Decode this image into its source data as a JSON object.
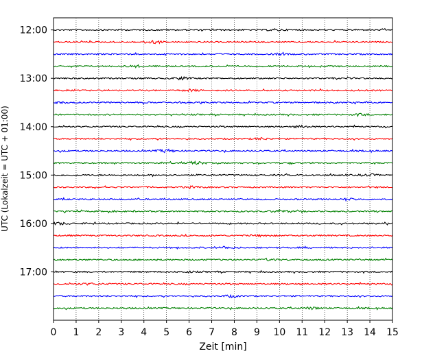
{
  "chart_data": {
    "type": "line",
    "xlabel": "Zeit  [min]",
    "ylabel": "UTC (Lokalzeit = UTC + 01:00)",
    "xlim": [
      0,
      15
    ],
    "x_ticks": [
      "0",
      "1",
      "2",
      "3",
      "4",
      "5",
      "6",
      "7",
      "8",
      "9",
      "10",
      "11",
      "12",
      "13",
      "14",
      "15"
    ],
    "y_ticks": [
      "12:00",
      "13:00",
      "14:00",
      "15:00",
      "16:00",
      "17:00"
    ],
    "ylim_minutes_after_12": [
      -0.25,
      6.0
    ],
    "trace_start_offsets_minutes": [
      0,
      15,
      30,
      45,
      60,
      75,
      90,
      105,
      120,
      135,
      150,
      165,
      180,
      195,
      210,
      225,
      240,
      255,
      270,
      285,
      300,
      315,
      330,
      345
    ],
    "trace_colors": [
      "#000000",
      "#ff0000",
      "#0000ff",
      "#008000"
    ],
    "grid": "vertical-dotted"
  }
}
